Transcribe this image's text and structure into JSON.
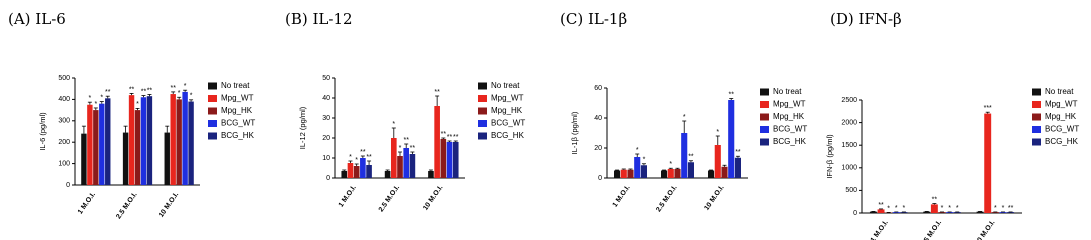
{
  "chart_data": [
    {
      "type": "bar",
      "title": "(A) IL-6",
      "y_label": "IL-6 (pg/ml)",
      "categories": [
        "1 M.O.I.",
        "2.5 M.O.I.",
        "10 M.O.I."
      ],
      "ylim": [
        0,
        500
      ],
      "yticks": [
        0,
        100,
        200,
        300,
        400,
        500
      ],
      "series": [
        {
          "name": "No treat",
          "color": "#111111",
          "values": [
            240,
            245,
            245
          ],
          "errors": [
            35,
            30,
            30
          ],
          "stars": [
            null,
            null,
            null
          ]
        },
        {
          "name": "Mpg_WT",
          "color": "#e8261e",
          "values": [
            375,
            420,
            425
          ],
          "errors": [
            12,
            8,
            10
          ],
          "stars": [
            "*",
            "**",
            "**"
          ]
        },
        {
          "name": "Mpg_HK",
          "color": "#8b1a1a",
          "values": [
            350,
            350,
            400
          ],
          "errors": [
            10,
            8,
            10
          ],
          "stars": [
            "*",
            "*",
            "*"
          ]
        },
        {
          "name": "BCG_WT",
          "color": "#1f2fe0",
          "values": [
            380,
            410,
            435
          ],
          "errors": [
            10,
            8,
            8
          ],
          "stars": [
            "*",
            "**",
            "*"
          ]
        },
        {
          "name": "BCG_HK",
          "color": "#1a237e",
          "values": [
            405,
            415,
            390
          ],
          "errors": [
            10,
            8,
            8
          ],
          "stars": [
            "**",
            "**",
            "*"
          ]
        }
      ]
    },
    {
      "type": "bar",
      "title": "(B) IL-12",
      "y_label": "IL-12 (pg/ml)",
      "categories": [
        "1 M.O.I.",
        "2.5 M.O.I.",
        "10 M.O.I."
      ],
      "ylim": [
        0,
        50
      ],
      "yticks": [
        0,
        10,
        20,
        30,
        40,
        50
      ],
      "series": [
        {
          "name": "No treat",
          "color": "#111111",
          "values": [
            3.5,
            3.5,
            3.5
          ],
          "errors": [
            0.5,
            0.5,
            0.5
          ],
          "stars": [
            null,
            null,
            null
          ]
        },
        {
          "name": "Mpg_WT",
          "color": "#e8261e",
          "values": [
            7.5,
            20,
            36
          ],
          "errors": [
            1,
            5,
            5
          ],
          "stars": [
            "*",
            "*",
            "**"
          ]
        },
        {
          "name": "Mpg_HK",
          "color": "#8b1a1a",
          "values": [
            6,
            11,
            19.5
          ],
          "errors": [
            1,
            2,
            0.5
          ],
          "stars": [
            "*",
            "*",
            "**"
          ]
        },
        {
          "name": "BCG_WT",
          "color": "#1f2fe0",
          "values": [
            10,
            15,
            18
          ],
          "errors": [
            1,
            2,
            0.5
          ],
          "stars": [
            "**",
            "**",
            "**"
          ]
        },
        {
          "name": "BCG_HK",
          "color": "#1a237e",
          "values": [
            6.5,
            12,
            18
          ],
          "errors": [
            2,
            1,
            0.5
          ],
          "stars": [
            "**",
            "**",
            "**"
          ]
        }
      ]
    },
    {
      "type": "bar",
      "title": "(C) IL-1β",
      "y_label": "IL-1β (pg/ml)",
      "categories": [
        "1 M.O.I.",
        "2.5 M.O.I.",
        "10 M.O.I."
      ],
      "ylim": [
        0,
        60
      ],
      "yticks": [
        0,
        20,
        40,
        60
      ],
      "series": [
        {
          "name": "No treat",
          "color": "#111111",
          "values": [
            5,
            5,
            5
          ],
          "errors": [
            0.3,
            0.3,
            0.3
          ],
          "stars": [
            null,
            null,
            null
          ]
        },
        {
          "name": "Mpg_WT",
          "color": "#e8261e",
          "values": [
            5.5,
            6,
            22
          ],
          "errors": [
            0.5,
            0.5,
            6
          ],
          "stars": [
            null,
            "*",
            "*"
          ]
        },
        {
          "name": "Mpg_HK",
          "color": "#8b1a1a",
          "values": [
            5.5,
            6,
            7.5
          ],
          "errors": [
            0.5,
            0.5,
            1
          ],
          "stars": [
            null,
            null,
            null
          ]
        },
        {
          "name": "BCG_WT",
          "color": "#1f2fe0",
          "values": [
            14,
            30,
            52
          ],
          "errors": [
            2,
            8,
            1
          ],
          "stars": [
            "*",
            "*",
            "**"
          ]
        },
        {
          "name": "BCG_HK",
          "color": "#1a237e",
          "values": [
            8.5,
            10.5,
            13.5
          ],
          "errors": [
            1,
            1,
            1
          ],
          "stars": [
            "*",
            "**",
            "**"
          ]
        }
      ]
    },
    {
      "type": "bar",
      "title": "(D) IFN-β",
      "y_label": "IFN-β (pg/ml)",
      "categories": [
        "1 M.O.I.",
        "2.5 M.O.I.",
        "10 M.O.I."
      ],
      "ylim": [
        0,
        2500
      ],
      "yticks": [
        0,
        500,
        1000,
        1500,
        2000,
        2500
      ],
      "series": [
        {
          "name": "No treat",
          "color": "#111111",
          "values": [
            30,
            30,
            30
          ],
          "errors": [
            5,
            5,
            5
          ],
          "stars": [
            null,
            null,
            null
          ]
        },
        {
          "name": "Mpg_WT",
          "color": "#e8261e",
          "values": [
            80,
            190,
            2200
          ],
          "errors": [
            10,
            20,
            30
          ],
          "stars": [
            "**",
            "**",
            "***"
          ]
        },
        {
          "name": "Mpg_HK",
          "color": "#8b1a1a",
          "values": [
            10,
            20,
            20
          ],
          "errors": [
            3,
            3,
            3
          ],
          "stars": [
            "*",
            "*",
            "*"
          ]
        },
        {
          "name": "BCG_WT",
          "color": "#1f2fe0",
          "values": [
            20,
            20,
            20
          ],
          "errors": [
            3,
            3,
            3
          ],
          "stars": [
            "*",
            "*",
            "*"
          ]
        },
        {
          "name": "BCG_HK",
          "color": "#1a237e",
          "values": [
            20,
            20,
            20
          ],
          "errors": [
            3,
            3,
            3
          ],
          "stars": [
            "*",
            "*",
            "**"
          ]
        }
      ]
    }
  ]
}
